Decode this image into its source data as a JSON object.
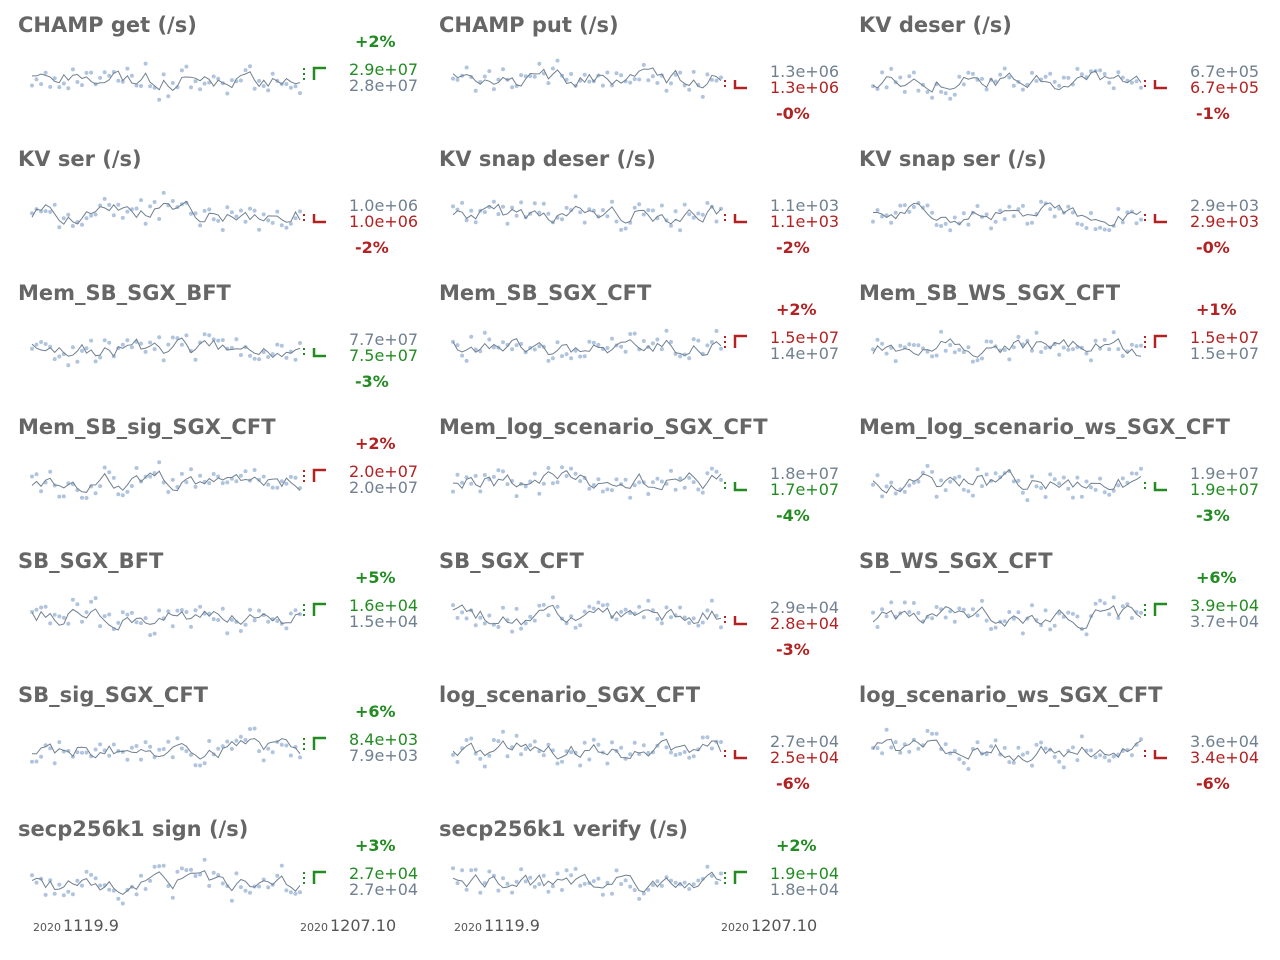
{
  "x_axis": {
    "start_year": "2020",
    "start_label": "1119.9",
    "end_year": "2020",
    "end_label": "1207.10"
  },
  "colors": {
    "good": "#228b22",
    "bad": "#b22222",
    "neutral": "#708090",
    "dots": "#b0c4de",
    "line": "#708090",
    "title": "#666666"
  },
  "chart_data": [
    {
      "type": "line",
      "title": "CHAMP get (/s)",
      "direction": "up",
      "baseline_label": "2.8e+07",
      "latest_label": "2.9e+07",
      "change": "+2%",
      "color": "good"
    },
    {
      "type": "line",
      "title": "CHAMP put (/s)",
      "direction": "down",
      "baseline_label": "1.3e+06",
      "latest_label": "1.3e+06",
      "change": "-0%",
      "color": "bad"
    },
    {
      "type": "line",
      "title": "KV deser (/s)",
      "direction": "down",
      "baseline_label": "6.7e+05",
      "latest_label": "6.7e+05",
      "change": "-1%",
      "color": "bad"
    },
    {
      "type": "line",
      "title": "KV ser (/s)",
      "direction": "down",
      "baseline_label": "1.0e+06",
      "latest_label": "1.0e+06",
      "change": "-2%",
      "color": "bad"
    },
    {
      "type": "line",
      "title": "KV snap deser (/s)",
      "direction": "down",
      "baseline_label": "1.1e+03",
      "latest_label": "1.1e+03",
      "change": "-2%",
      "color": "bad"
    },
    {
      "type": "line",
      "title": "KV snap ser (/s)",
      "direction": "down",
      "baseline_label": "2.9e+03",
      "latest_label": "2.9e+03",
      "change": "-0%",
      "color": "bad"
    },
    {
      "type": "line",
      "title": "Mem_SB_SGX_BFT",
      "direction": "down",
      "baseline_label": "7.7e+07",
      "latest_label": "7.5e+07",
      "change": "-3%",
      "color": "good"
    },
    {
      "type": "line",
      "title": "Mem_SB_SGX_CFT",
      "direction": "up",
      "baseline_label": "1.4e+07",
      "latest_label": "1.5e+07",
      "change": "+2%",
      "color": "bad"
    },
    {
      "type": "line",
      "title": "Mem_SB_WS_SGX_CFT",
      "direction": "up",
      "baseline_label": "1.5e+07",
      "latest_label": "1.5e+07",
      "change": "+1%",
      "color": "bad"
    },
    {
      "type": "line",
      "title": "Mem_SB_sig_SGX_CFT",
      "direction": "up",
      "baseline_label": "2.0e+07",
      "latest_label": "2.0e+07",
      "change": "+2%",
      "color": "bad"
    },
    {
      "type": "line",
      "title": "Mem_log_scenario_SGX_CFT",
      "direction": "down",
      "baseline_label": "1.8e+07",
      "latest_label": "1.7e+07",
      "change": "-4%",
      "color": "good"
    },
    {
      "type": "line",
      "title": "Mem_log_scenario_ws_SGX_CFT",
      "direction": "down",
      "baseline_label": "1.9e+07",
      "latest_label": "1.9e+07",
      "change": "-3%",
      "color": "good"
    },
    {
      "type": "line",
      "title": "SB_SGX_BFT",
      "direction": "up",
      "baseline_label": "1.5e+04",
      "latest_label": "1.6e+04",
      "change": "+5%",
      "color": "good"
    },
    {
      "type": "line",
      "title": "SB_SGX_CFT",
      "direction": "down",
      "baseline_label": "2.9e+04",
      "latest_label": "2.8e+04",
      "change": "-3%",
      "color": "bad"
    },
    {
      "type": "line",
      "title": "SB_WS_SGX_CFT",
      "direction": "up",
      "baseline_label": "3.7e+04",
      "latest_label": "3.9e+04",
      "change": "+6%",
      "color": "good"
    },
    {
      "type": "line",
      "title": "SB_sig_SGX_CFT",
      "direction": "up",
      "baseline_label": "7.9e+03",
      "latest_label": "8.4e+03",
      "change": "+6%",
      "color": "good"
    },
    {
      "type": "line",
      "title": "log_scenario_SGX_CFT",
      "direction": "down",
      "baseline_label": "2.7e+04",
      "latest_label": "2.5e+04",
      "change": "-6%",
      "color": "bad"
    },
    {
      "type": "line",
      "title": "log_scenario_ws_SGX_CFT",
      "direction": "down",
      "baseline_label": "3.6e+04",
      "latest_label": "3.4e+04",
      "change": "-6%",
      "color": "bad"
    },
    {
      "type": "line",
      "title": "secp256k1 sign (/s)",
      "direction": "up",
      "baseline_label": "2.7e+04",
      "latest_label": "2.7e+04",
      "change": "+3%",
      "color": "good"
    },
    {
      "type": "line",
      "title": "secp256k1 verify (/s)",
      "direction": "up",
      "baseline_label": "1.8e+04",
      "latest_label": "1.9e+04",
      "change": "+2%",
      "color": "good"
    }
  ]
}
